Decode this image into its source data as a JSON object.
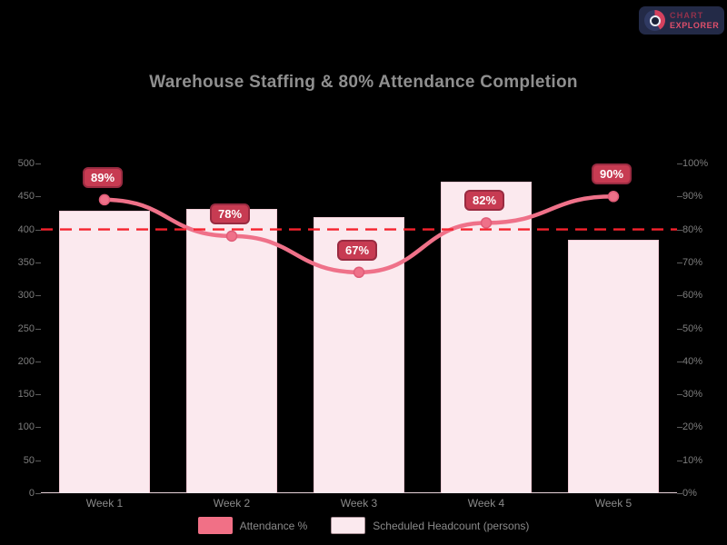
{
  "logo": {
    "line1": "CHART",
    "line2": "EXPLORER"
  },
  "chart_data": {
    "type": "bar",
    "title": "Warehouse Staffing & 80% Attendance Completion",
    "categories": [
      "Week 1",
      "Week 2",
      "Week 3",
      "Week 4",
      "Week 5"
    ],
    "series": [
      {
        "name": "Attendance %",
        "type": "line",
        "axis": "right",
        "values": [
          89,
          78,
          67,
          82,
          90
        ],
        "point_labels": [
          "89%",
          "78%",
          "67%",
          "82%",
          "90%"
        ]
      },
      {
        "name": "Scheduled Headcount (persons)",
        "type": "bar",
        "axis": "left",
        "values": [
          428,
          431,
          419,
          472,
          384
        ]
      }
    ],
    "target_line": {
      "axis": "right",
      "value": 80
    },
    "left_axis": {
      "min": 0,
      "max": 500,
      "step": 50,
      "tick_labels": [
        "500",
        "450",
        "400",
        "350",
        "300",
        "250",
        "200",
        "150",
        "100",
        "50",
        "0"
      ]
    },
    "right_axis": {
      "min": 0,
      "max": 100,
      "step": 10,
      "tick_labels": [
        "100%",
        "90%",
        "80%",
        "70%",
        "60%",
        "50%",
        "40%",
        "30%",
        "20%",
        "10%",
        "0%"
      ]
    },
    "legend_position": "bottom",
    "grid": false
  },
  "colors": {
    "background": "#000000",
    "bar_fill": "#fbe9ee",
    "bar_border": "#f1ccd6",
    "line": "#ef7189",
    "marker_edge": "#e05c77",
    "badge_bg": "#c73b52",
    "badge_border": "#992b41",
    "target_line": "#f5222d",
    "axis_text": "#7d7d7d",
    "title_text": "#8f8f8f"
  }
}
